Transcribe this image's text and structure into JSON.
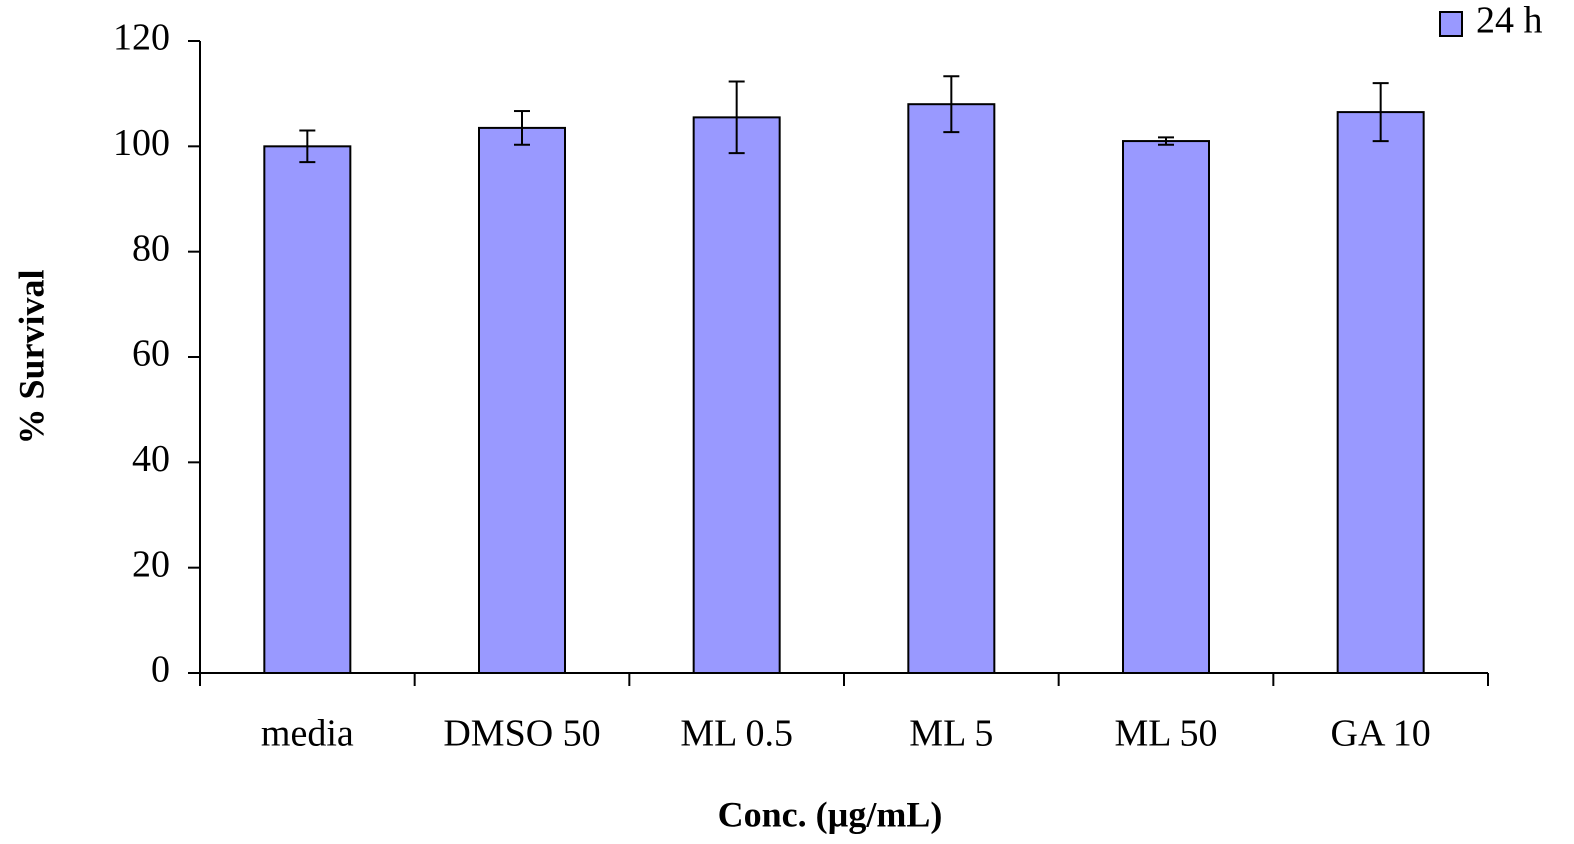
{
  "chart_data": {
    "type": "bar",
    "x_label": "Conc. (µg/mL)",
    "y_label": "% Survival",
    "categories": [
      "media",
      "DMSO 50",
      "ML 0.5",
      "ML 5",
      "ML 50",
      "GA 10"
    ],
    "series": [
      {
        "name": "24 h",
        "color": "#9999ff",
        "values": [
          100,
          103.5,
          105.5,
          108,
          101,
          106.5
        ],
        "errors": [
          3,
          3.2,
          6.8,
          5.3,
          0.7,
          5.5
        ]
      }
    ],
    "ylim": [
      0,
      120
    ],
    "yticks": [
      0,
      20,
      40,
      60,
      80,
      100,
      120
    ],
    "grid": false,
    "legend": "top-right"
  }
}
